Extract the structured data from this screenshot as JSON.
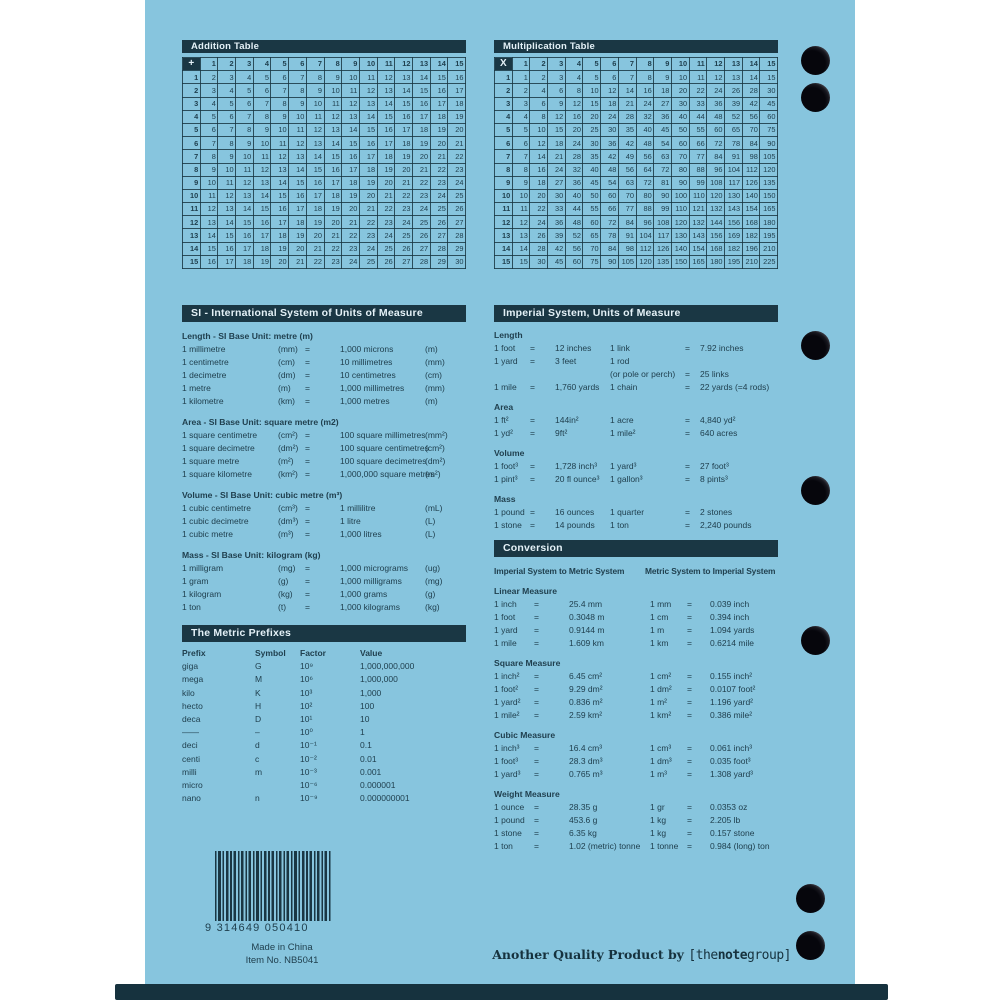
{
  "addition_table": {
    "title": "Addition Table",
    "corner": "+",
    "col_headers": [
      1,
      2,
      3,
      4,
      5,
      6,
      7,
      8,
      9,
      10,
      11,
      12,
      13,
      14,
      15
    ],
    "row_headers": [
      1,
      2,
      3,
      4,
      5,
      6,
      7,
      8,
      9,
      10,
      11,
      12,
      13,
      14,
      15
    ],
    "rows": [
      [
        2,
        3,
        4,
        5,
        6,
        7,
        8,
        9,
        10,
        11,
        12,
        13,
        14,
        15,
        16
      ],
      [
        3,
        4,
        5,
        6,
        7,
        8,
        9,
        10,
        11,
        12,
        13,
        14,
        15,
        16,
        17
      ],
      [
        4,
        5,
        6,
        7,
        8,
        9,
        10,
        11,
        12,
        13,
        14,
        15,
        16,
        17,
        18
      ],
      [
        5,
        6,
        7,
        8,
        9,
        10,
        11,
        12,
        13,
        14,
        15,
        16,
        17,
        18,
        19
      ],
      [
        6,
        7,
        8,
        9,
        10,
        11,
        12,
        13,
        14,
        15,
        16,
        17,
        18,
        19,
        20
      ],
      [
        7,
        8,
        9,
        10,
        11,
        12,
        13,
        14,
        15,
        16,
        17,
        18,
        19,
        20,
        21
      ],
      [
        8,
        9,
        10,
        11,
        12,
        13,
        14,
        15,
        16,
        17,
        18,
        19,
        20,
        21,
        22
      ],
      [
        9,
        10,
        11,
        12,
        13,
        14,
        15,
        16,
        17,
        18,
        19,
        20,
        21,
        22,
        23
      ],
      [
        10,
        11,
        12,
        13,
        14,
        15,
        16,
        17,
        18,
        19,
        20,
        21,
        22,
        23,
        24
      ],
      [
        11,
        12,
        13,
        14,
        15,
        16,
        17,
        18,
        19,
        20,
        21,
        22,
        23,
        24,
        25
      ],
      [
        12,
        13,
        14,
        15,
        16,
        17,
        18,
        19,
        20,
        21,
        22,
        23,
        24,
        25,
        26
      ],
      [
        13,
        14,
        15,
        16,
        17,
        18,
        19,
        20,
        21,
        22,
        23,
        24,
        25,
        26,
        27
      ],
      [
        14,
        15,
        16,
        17,
        18,
        19,
        20,
        21,
        22,
        23,
        24,
        25,
        26,
        27,
        28
      ],
      [
        15,
        16,
        17,
        18,
        19,
        20,
        21,
        22,
        23,
        24,
        25,
        26,
        27,
        28,
        29
      ],
      [
        16,
        17,
        18,
        19,
        20,
        21,
        22,
        23,
        24,
        25,
        26,
        27,
        28,
        29,
        30
      ]
    ]
  },
  "multiplication_table": {
    "title": "Multiplication Table",
    "corner": "X",
    "col_headers": [
      1,
      2,
      3,
      4,
      5,
      6,
      7,
      8,
      9,
      10,
      11,
      12,
      13,
      14,
      15
    ],
    "row_headers": [
      1,
      2,
      3,
      4,
      5,
      6,
      7,
      8,
      9,
      10,
      11,
      12,
      13,
      14,
      15
    ],
    "rows": [
      [
        1,
        2,
        3,
        4,
        5,
        6,
        7,
        8,
        9,
        10,
        11,
        12,
        13,
        14,
        15
      ],
      [
        2,
        4,
        6,
        8,
        10,
        12,
        14,
        16,
        18,
        20,
        22,
        24,
        26,
        28,
        30
      ],
      [
        3,
        6,
        9,
        12,
        15,
        18,
        21,
        24,
        27,
        30,
        33,
        36,
        39,
        42,
        45
      ],
      [
        4,
        8,
        12,
        16,
        20,
        24,
        28,
        32,
        36,
        40,
        44,
        48,
        52,
        56,
        60
      ],
      [
        5,
        10,
        15,
        20,
        25,
        30,
        35,
        40,
        45,
        50,
        55,
        60,
        65,
        70,
        75
      ],
      [
        6,
        12,
        18,
        24,
        30,
        36,
        42,
        48,
        54,
        60,
        66,
        72,
        78,
        84,
        90
      ],
      [
        7,
        14,
        21,
        28,
        35,
        42,
        49,
        56,
        63,
        70,
        77,
        84,
        91,
        98,
        105
      ],
      [
        8,
        16,
        24,
        32,
        40,
        48,
        56,
        64,
        72,
        80,
        88,
        96,
        104,
        112,
        120
      ],
      [
        9,
        18,
        27,
        36,
        45,
        54,
        63,
        72,
        81,
        90,
        99,
        108,
        117,
        126,
        135
      ],
      [
        10,
        20,
        30,
        40,
        50,
        60,
        70,
        80,
        90,
        100,
        110,
        120,
        130,
        140,
        150
      ],
      [
        11,
        22,
        33,
        44,
        55,
        66,
        77,
        88,
        99,
        110,
        121,
        132,
        143,
        154,
        165
      ],
      [
        12,
        24,
        36,
        48,
        60,
        72,
        84,
        96,
        108,
        120,
        132,
        144,
        156,
        168,
        180
      ],
      [
        13,
        26,
        39,
        52,
        65,
        78,
        91,
        104,
        117,
        130,
        143,
        156,
        169,
        182,
        195
      ],
      [
        14,
        28,
        42,
        56,
        70,
        84,
        98,
        112,
        126,
        140,
        154,
        168,
        182,
        196,
        210
      ],
      [
        15,
        30,
        45,
        60,
        75,
        90,
        105,
        120,
        135,
        150,
        165,
        180,
        195,
        210,
        225
      ]
    ]
  },
  "si_section": {
    "title": "SI - International System of Units of Measure",
    "groups": [
      {
        "heading": "Length - SI Base Unit: metre (m)",
        "rows": [
          [
            "1 millimetre",
            "(mm)",
            "=",
            "1,000 microns",
            "(m)"
          ],
          [
            "1 centimetre",
            "(cm)",
            "=",
            "10 millimetres",
            "(mm)"
          ],
          [
            "1 decimetre",
            "(dm)",
            "=",
            "10 centimetres",
            "(cm)"
          ],
          [
            "1 metre",
            "(m)",
            "=",
            "1,000 millimetres",
            "(mm)"
          ],
          [
            "1 kilometre",
            "(km)",
            "=",
            "1,000 metres",
            "(m)"
          ]
        ]
      },
      {
        "heading": "Area - SI Base Unit: square metre (m2)",
        "rows": [
          [
            "1 square centimetre",
            "(cm²)",
            "=",
            "100 square millimetres",
            "(mm²)"
          ],
          [
            "1 square decimetre",
            "(dm²)",
            "=",
            "100 square centimetres",
            "(cm²)"
          ],
          [
            "1 square metre",
            "(m²)",
            "=",
            "100 square decimetres",
            "(dm²)"
          ],
          [
            "1 square kilometre",
            "(km²)",
            "=",
            "1,000,000 square metres",
            "(m²)"
          ]
        ]
      },
      {
        "heading": "Volume - SI Base Unit: cubic metre (m³)",
        "rows": [
          [
            "1 cubic centimetre",
            "(cm³)",
            "=",
            "1 millilitre",
            "(mL)"
          ],
          [
            "1 cubic decimetre",
            "(dm³)",
            "=",
            "1 litre",
            "(L)"
          ],
          [
            "1 cubic metre",
            "(m³)",
            "=",
            "1,000 litres",
            "(L)"
          ]
        ]
      },
      {
        "heading": "Mass - SI Base Unit: kilogram (kg)",
        "rows": [
          [
            "1 milligram",
            "(mg)",
            "=",
            "1,000 micrograms",
            "(ug)"
          ],
          [
            "1 gram",
            "(g)",
            "=",
            "1,000 milligrams",
            "(mg)"
          ],
          [
            "1 kilogram",
            "(kg)",
            "=",
            "1,000 grams",
            "(g)"
          ],
          [
            "1 ton",
            "(t)",
            "=",
            "1,000 kilograms",
            "(kg)"
          ]
        ]
      }
    ]
  },
  "imperial_section": {
    "title": "Imperial System, Units of Measure",
    "groups": [
      {
        "heading": "Length",
        "rows": [
          [
            "1 foot",
            "=",
            "12 inches",
            "1 link",
            "=",
            "7.92 inches"
          ],
          [
            "1 yard",
            "=",
            "3 feet",
            "1 rod",
            "",
            ""
          ],
          [
            "",
            "",
            "",
            "(or pole or perch)",
            "=",
            "25 links"
          ],
          [
            "1 mile",
            "=",
            "1,760 yards",
            "1 chain",
            "=",
            "22 yards (=4 rods)"
          ]
        ]
      },
      {
        "heading": "Area",
        "rows": [
          [
            "1 ft²",
            "=",
            "144in²",
            "1 acre",
            "=",
            "4,840 yd²"
          ],
          [
            "1 yd²",
            "=",
            "9ft²",
            "1 mile²",
            "=",
            "640 acres"
          ]
        ]
      },
      {
        "heading": "Volume",
        "rows": [
          [
            "1 foot³",
            "=",
            "1,728 inch³",
            "1 yard³",
            "=",
            "27 foot³"
          ],
          [
            "1 pint³",
            "=",
            "20 fl ounce³",
            "1 gallon³",
            "=",
            "8 pints³"
          ]
        ]
      },
      {
        "heading": "Mass",
        "rows": [
          [
            "1 pound",
            "=",
            "16 ounces",
            "1 quarter",
            "=",
            "2 stones"
          ],
          [
            "1 stone",
            "=",
            "14 pounds",
            "1 ton",
            "=",
            "2,240 pounds"
          ]
        ]
      }
    ]
  },
  "conversion_section": {
    "title": "Conversion",
    "left_header": "Imperial System to Metric System",
    "right_header": "Metric System to Imperial System",
    "groups": [
      {
        "heading": "Linear Measure",
        "rows": [
          [
            "1 inch",
            "=",
            "25.4 mm",
            "1 mm",
            "=",
            "0.039 inch"
          ],
          [
            "1 foot",
            "=",
            "0.3048 m",
            "1 cm",
            "=",
            "0.394 inch"
          ],
          [
            "1 yard",
            "=",
            "0.9144 m",
            "1 m",
            "=",
            "1.094 yards"
          ],
          [
            "1 mile",
            "=",
            "1.609 km",
            "1 km",
            "=",
            "0.6214 mile"
          ]
        ]
      },
      {
        "heading": "Square Measure",
        "rows": [
          [
            "1 inch²",
            "=",
            "6.45 cm²",
            "1 cm²",
            "=",
            "0.155 inch²"
          ],
          [
            "1 foot²",
            "=",
            "9.29 dm²",
            "1 dm²",
            "=",
            "0.0107 foot²"
          ],
          [
            "1 yard²",
            "=",
            "0.836 m²",
            "1 m²",
            "=",
            "1.196 yard²"
          ],
          [
            "1 mile²",
            "=",
            "2.59 km²",
            "1 km²",
            "=",
            "0.386 mile²"
          ]
        ]
      },
      {
        "heading": "Cubic Measure",
        "rows": [
          [
            "1 inch³",
            "=",
            "16.4 cm³",
            "1 cm³",
            "=",
            "0.061 inch³"
          ],
          [
            "1 foot³",
            "=",
            "28.3 dm³",
            "1 dm³",
            "=",
            "0.035 foot³"
          ],
          [
            "1 yard³",
            "=",
            "0.765 m³",
            "1 m³",
            "=",
            "1.308 yard³"
          ]
        ]
      },
      {
        "heading": "Weight Measure",
        "rows": [
          [
            "1 ounce",
            "=",
            "28.35 g",
            "1 gr",
            "=",
            "0.0353 oz"
          ],
          [
            "1 pound",
            "=",
            "453.6 g",
            "1 kg",
            "=",
            "2.205 lb"
          ],
          [
            "1 stone",
            "=",
            "6.35 kg",
            "1 kg",
            "=",
            "0.157 stone"
          ],
          [
            "1 ton",
            "=",
            "1.02 (metric) tonne",
            "1 tonne",
            "=",
            "0.984 (long) ton"
          ]
        ]
      }
    ]
  },
  "metric_prefixes": {
    "title": "The Metric Prefixes",
    "headers": [
      "Prefix",
      "Symbol",
      "Factor",
      "Value"
    ],
    "rows": [
      [
        "giga",
        "G",
        "10⁹",
        "1,000,000,000"
      ],
      [
        "mega",
        "M",
        "10⁶",
        "1,000,000"
      ],
      [
        "kilo",
        "K",
        "10³",
        "1,000"
      ],
      [
        "hecto",
        "H",
        "10²",
        "100"
      ],
      [
        "deca",
        "D",
        "10¹",
        "10"
      ],
      [
        "——",
        "–",
        "10⁰",
        "1"
      ],
      [
        "deci",
        "d",
        "10⁻¹",
        "0.1"
      ],
      [
        "centi",
        "c",
        "10⁻²",
        "0.01"
      ],
      [
        "milli",
        "m",
        "10⁻³",
        "0.001"
      ],
      [
        "micro",
        "",
        "10⁻⁶",
        "0.000001"
      ],
      [
        "nano",
        "n",
        "10⁻⁹",
        "0.000000001"
      ]
    ]
  },
  "footer": {
    "barcode_digits": "9 314649 050410",
    "made_in": "Made in China",
    "item_no": "Item No. NB5041",
    "tagline_bold": "Another Quality Product by",
    "brand_prefix": "[the",
    "brand_bold": "note",
    "brand_suffix": "group]"
  },
  "colors": {
    "page_blue": "#87c5de",
    "ink": "#20404f",
    "header_bar": "#1a3744",
    "notebook_edge": "#16323e"
  }
}
